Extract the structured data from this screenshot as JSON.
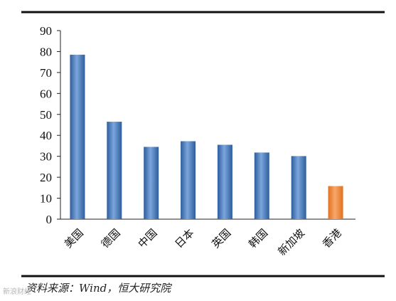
{
  "chart_data": {
    "type": "bar",
    "categories": [
      "美国",
      "德国",
      "中国",
      "日本",
      "英国",
      "韩国",
      "新加坡",
      "香港"
    ],
    "values": [
      78.5,
      46.5,
      34.5,
      37.2,
      35.5,
      31.8,
      30.1,
      15.8
    ],
    "ylim": [
      0,
      90
    ],
    "yticks": [
      0,
      10,
      20,
      30,
      40,
      50,
      60,
      70,
      80,
      90
    ],
    "highlight_category": "香港",
    "colors": {
      "bar": "#3f78c3",
      "highlight": "#f0893e",
      "axis": "#222222",
      "rule": "#111111"
    },
    "grid": false
  },
  "source_note": "资料来源：Wind，恒大研究院",
  "watermark": "新浪财经"
}
